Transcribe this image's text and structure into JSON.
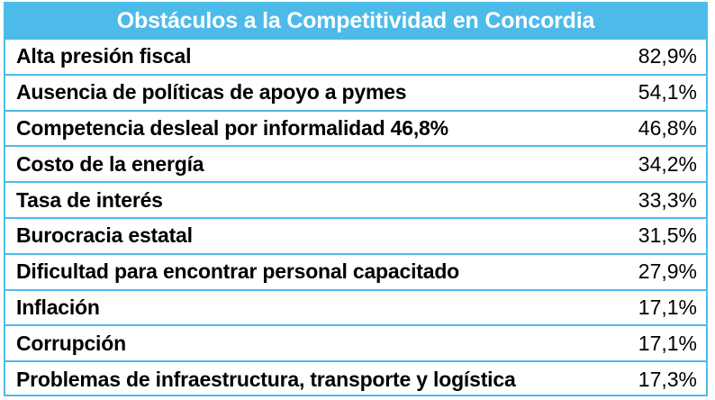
{
  "chart_data": {
    "type": "table",
    "title": "Obstáculos a la Competitividad en Concordia",
    "rows": [
      {
        "label": "Alta presión fiscal",
        "value_text": "82,9%",
        "value": 82.9
      },
      {
        "label": "Ausencia de políticas de apoyo a pymes",
        "value_text": "54,1%",
        "value": 54.1
      },
      {
        "label": "Competencia desleal por informalidad 46,8%",
        "value_text": "46,8%",
        "value": 46.8
      },
      {
        "label": "Costo de la energía",
        "value_text": "34,2%",
        "value": 34.2
      },
      {
        "label": "Tasa de interés",
        "value_text": "33,3%",
        "value": 33.3
      },
      {
        "label": "Burocracia estatal",
        "value_text": "31,5%",
        "value": 31.5
      },
      {
        "label": "Dificultad para encontrar personal capacitado",
        "value_text": "27,9%",
        "value": 27.9
      },
      {
        "label": "Inflación",
        "value_text": "17,1%",
        "value": 17.1
      },
      {
        "label": "Corrupción",
        "value_text": "17,1%",
        "value": 17.1
      },
      {
        "label": "Problemas de infraestructura, transporte y logística",
        "value_text": "17,3%",
        "value": 17.3
      }
    ],
    "colors": {
      "header_background": "#4dbbe9",
      "header_text": "#ffffff",
      "border": "#4dbbe9",
      "body_text": "#000000"
    }
  }
}
